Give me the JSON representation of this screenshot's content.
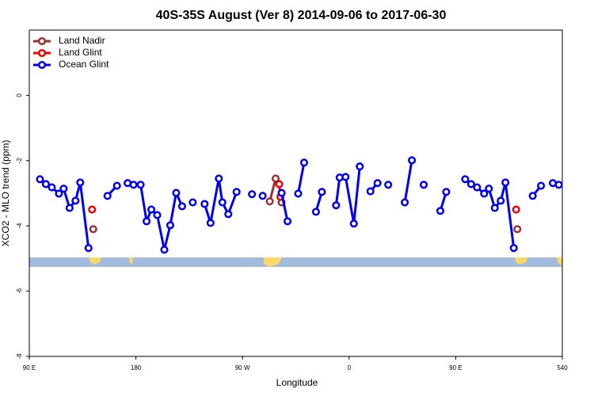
{
  "chart_data": {
    "type": "line",
    "title": "40S-35S August (Ver 8)   2014-09-06 to 2017-06-30",
    "x_label": "Longitude",
    "y_label": "XCO2 - MLO trend (ppm)",
    "xlim": [
      90,
      540
    ],
    "ylim": [
      -8,
      2
    ],
    "xticks": [
      {
        "value": 90,
        "label": "90 E"
      },
      180,
      {
        "value": 270,
        "label": "90 W"
      },
      {
        "value": 360,
        "label": "0"
      },
      {
        "value": 450,
        "label": "90 E"
      },
      540
    ],
    "yticks": [
      -8,
      -6,
      -4,
      -2,
      0
    ],
    "legend": "top-left",
    "series": [
      {
        "name": "Land Nadir",
        "color": "#993333",
        "x": [
          144,
          null,
          293,
          298,
          null,
          303,
          null,
          502
        ],
        "values": [
          -4.1,
          null,
          -3.25,
          -2.55,
          null,
          -3.28,
          null,
          -4.1
        ]
      },
      {
        "name": "Land Glint",
        "color": "#ee0000",
        "x": [
          143,
          null,
          301,
          302,
          null,
          501
        ],
        "values": [
          -3.5,
          null,
          -2.72,
          -3.11,
          null,
          -3.5
        ]
      },
      {
        "name": "Ocean Glint",
        "color": "#0000ee",
        "x": [
          99,
          104,
          109,
          115,
          119,
          124,
          129,
          133,
          140,
          null,
          156,
          164,
          null,
          173,
          178,
          184,
          189,
          193,
          198,
          204,
          209,
          214,
          219,
          null,
          228,
          null,
          238,
          243,
          250,
          253,
          258,
          265,
          null,
          278,
          null,
          287,
          null,
          303,
          308,
          null,
          317,
          322,
          null,
          332,
          337,
          null,
          349,
          352,
          357,
          364,
          369,
          null,
          378,
          384,
          null,
          393,
          null,
          407,
          413,
          null,
          423,
          null,
          437,
          442,
          null,
          458,
          463,
          468,
          474,
          478,
          483,
          488,
          492,
          499,
          null,
          515,
          522,
          null,
          532,
          537
        ],
        "values": [
          -2.57,
          -2.72,
          -2.82,
          -3.01,
          -2.86,
          -3.45,
          -3.23,
          -2.67,
          -4.68,
          null,
          -3.08,
          -2.77,
          null,
          -2.69,
          -2.74,
          -2.74,
          -3.86,
          -3.5,
          -3.67,
          -4.73,
          -3.98,
          -2.99,
          -3.4,
          null,
          -3.28,
          null,
          -3.33,
          -3.91,
          -2.55,
          -3.28,
          -3.64,
          -2.96,
          null,
          -3.03,
          null,
          -3.08,
          null,
          -2.99,
          -3.86,
          null,
          -3.01,
          -2.06,
          null,
          -3.57,
          -2.96,
          null,
          -3.37,
          -2.52,
          -2.5,
          -3.93,
          -2.18,
          null,
          -2.94,
          -2.69,
          null,
          -2.74,
          null,
          -3.28,
          -1.99,
          null,
          -2.74,
          null,
          -3.54,
          -2.96,
          null,
          -2.57,
          -2.72,
          -2.82,
          -3.01,
          -2.86,
          -3.45,
          -3.23,
          -2.67,
          -4.68,
          null,
          -3.08,
          -2.77,
          null,
          -2.69,
          -2.74
        ]
      }
    ]
  }
}
